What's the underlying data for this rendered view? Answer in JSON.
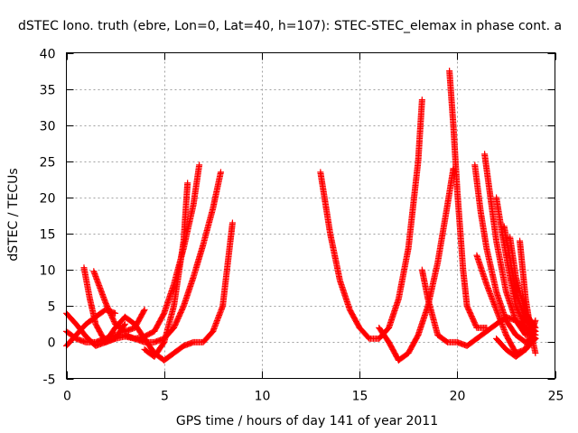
{
  "chart_data": {
    "type": "scatter",
    "title": "dSTEC Iono. truth (ebre, Lon=0, Lat=40, h=107): STEC-STEC_elemax in phase cont. a",
    "xlabel": "GPS time / hours of day 141 of year 2011",
    "ylabel": "dSTEC  / TECUs",
    "xlim": [
      0,
      25
    ],
    "ylim": [
      -5,
      40
    ],
    "x_ticks": [
      0,
      5,
      10,
      15,
      20,
      25
    ],
    "y_ticks": [
      -5,
      0,
      5,
      10,
      15,
      20,
      25,
      30,
      35,
      40
    ],
    "x_tick_labels": [
      "0",
      "5",
      "10",
      "15",
      "20",
      "25"
    ],
    "y_tick_labels": [
      "-5",
      "0",
      "5",
      "10",
      "15",
      "20",
      "25",
      "30",
      "35",
      "40"
    ],
    "grid": true,
    "marker": "+",
    "color": "#ff0000",
    "series": [
      {
        "x": [
          0.0,
          0.5,
          1.0,
          1.5,
          2.0,
          2.5,
          3.0,
          3.5,
          4.0,
          4.5,
          5.0,
          5.5,
          6.0,
          6.5,
          6.8
        ],
        "y": [
          4.0,
          2.5,
          0.8,
          -0.5,
          0.0,
          0.5,
          0.8,
          0.5,
          0.8,
          1.5,
          4.0,
          8.0,
          13.0,
          19.0,
          24.5
        ]
      },
      {
        "x": [
          0.0,
          0.5,
          1.0,
          1.5,
          2.0,
          2.5,
          3.0,
          3.5,
          4.0,
          4.5,
          5.0,
          5.5,
          6.0,
          6.5,
          7.0,
          7.5,
          7.9
        ],
        "y": [
          1.5,
          0.5,
          0.0,
          0.0,
          0.5,
          1.0,
          1.0,
          0.5,
          0.0,
          0.0,
          0.5,
          2.0,
          5.0,
          9.0,
          13.5,
          18.5,
          23.5
        ]
      },
      {
        "x": [
          0.0,
          0.5,
          1.0,
          1.5,
          2.0,
          2.5
        ],
        "y": [
          -0.5,
          1.0,
          2.5,
          3.5,
          4.5,
          4.0
        ]
      },
      {
        "x": [
          0.9,
          1.2,
          1.5,
          2.0,
          2.5,
          3.0
        ],
        "y": [
          10.3,
          6.0,
          2.5,
          0.0,
          0.5,
          2.5
        ]
      },
      {
        "x": [
          1.4,
          2.0,
          2.5,
          3.0,
          3.5,
          4.0
        ],
        "y": [
          9.8,
          5.5,
          2.5,
          1.5,
          2.0,
          4.5
        ]
      },
      {
        "x": [
          2.0,
          2.5,
          3.0,
          3.5,
          4.0,
          4.5,
          5.0,
          5.5,
          6.0,
          6.5,
          7.0,
          7.5,
          8.0,
          8.5
        ],
        "y": [
          0.0,
          2.0,
          3.5,
          2.5,
          0.5,
          -1.5,
          -2.5,
          -1.5,
          -0.5,
          0.0,
          0.0,
          1.5,
          5.0,
          16.5
        ]
      },
      {
        "x": [
          4.0,
          4.5,
          5.0,
          5.5,
          6.0,
          6.2
        ],
        "y": [
          -1.0,
          -2.0,
          0.0,
          5.0,
          14.0,
          22.0
        ]
      },
      {
        "x": [
          13.0,
          13.5,
          14.0,
          14.5,
          15.0,
          15.5,
          16.0,
          16.5,
          17.0,
          17.5,
          18.0,
          18.2
        ],
        "y": [
          23.5,
          15.0,
          8.5,
          4.5,
          2.0,
          0.5,
          0.5,
          2.0,
          6.0,
          13.0,
          25.0,
          33.5
        ]
      },
      {
        "x": [
          16.0,
          16.5,
          17.0,
          17.5,
          18.0,
          18.5,
          19.0,
          19.5,
          19.8
        ],
        "y": [
          2.0,
          0.0,
          -2.5,
          -1.5,
          1.0,
          5.0,
          11.0,
          19.0,
          24.0
        ]
      },
      {
        "x": [
          18.2,
          18.5,
          19.0,
          19.5,
          20.0,
          20.5,
          21.0,
          21.5,
          22.0,
          22.5,
          23.0,
          23.5,
          24.0
        ],
        "y": [
          10.0,
          6.0,
          1.0,
          0.0,
          0.0,
          -0.5,
          0.5,
          1.5,
          2.5,
          3.5,
          3.0,
          2.0,
          0.5
        ]
      },
      {
        "x": [
          19.6,
          19.8,
          20.0,
          20.3,
          20.5,
          21.0,
          21.5
        ],
        "y": [
          37.5,
          30.0,
          21.0,
          10.0,
          5.0,
          2.0,
          2.0
        ]
      },
      {
        "x": [
          20.9,
          21.2,
          21.5,
          22.0,
          22.5,
          23.0,
          23.5,
          24.0
        ],
        "y": [
          24.5,
          18.0,
          13.0,
          7.0,
          3.0,
          1.0,
          0.0,
          0.5
        ]
      },
      {
        "x": [
          21.4,
          21.7,
          22.0,
          22.5,
          23.0,
          23.5,
          24.0
        ],
        "y": [
          26.0,
          20.0,
          14.0,
          7.0,
          3.0,
          1.0,
          1.5
        ]
      },
      {
        "x": [
          22.0,
          22.3,
          22.7,
          23.0,
          23.5,
          24.0
        ],
        "y": [
          20.0,
          15.0,
          9.0,
          5.0,
          2.0,
          1.0
        ]
      },
      {
        "x": [
          22.4,
          22.8,
          23.0,
          23.5,
          24.0
        ],
        "y": [
          16.0,
          10.0,
          7.0,
          3.0,
          1.5
        ]
      },
      {
        "x": [
          22.7,
          23.0,
          23.5,
          24.0
        ],
        "y": [
          14.5,
          9.0,
          4.0,
          2.0
        ]
      },
      {
        "x": [
          21.0,
          21.5,
          22.0,
          22.5,
          23.0,
          23.5,
          24.0
        ],
        "y": [
          12.0,
          8.0,
          4.5,
          1.0,
          -1.5,
          -1.0,
          0.5
        ]
      },
      {
        "x": [
          22.0,
          22.5,
          23.0,
          23.5,
          24.0
        ],
        "y": [
          0.5,
          -1.0,
          -2.0,
          -1.0,
          3.0
        ]
      },
      {
        "x": [
          23.2,
          23.5,
          23.8,
          24.0
        ],
        "y": [
          14.0,
          6.0,
          1.0,
          -1.5
        ]
      }
    ]
  }
}
